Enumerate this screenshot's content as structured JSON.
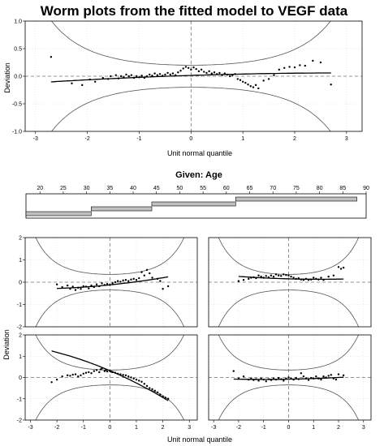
{
  "chart_data": {
    "type": "scatter",
    "title": "Worm plots from the fitted model to VEGF data",
    "xlabel": "Unit normal quantile",
    "ylabel": "Deviation",
    "given": {
      "label": "Given: Age",
      "range": [
        17,
        90
      ],
      "ticks": [
        20,
        25,
        30,
        35,
        40,
        45,
        50,
        55,
        60,
        65,
        70,
        75,
        80,
        85,
        90
      ],
      "intervals": [
        [
          17,
          31
        ],
        [
          31,
          44
        ],
        [
          44,
          62
        ],
        [
          62,
          88
        ]
      ]
    },
    "panels": [
      {
        "id": "overall",
        "xlim": [
          -3.2,
          3.3
        ],
        "ylim": [
          -1.0,
          1.0
        ],
        "xticks": [
          "-3",
          "-2",
          "-1",
          "0",
          "1",
          "2",
          "3"
        ],
        "yticks": [
          "-1.0",
          "-0.5",
          "0.0",
          "0.5",
          "1.0"
        ],
        "ci_factor": 0.2,
        "fit": {
          "a": 0.015,
          "b": 0.03,
          "c": -0.005,
          "d": 0.0
        },
        "points": [
          [
            -2.7,
            0.35
          ],
          [
            -2.3,
            -0.13
          ],
          [
            -2.1,
            -0.16
          ],
          [
            -1.95,
            -0.06
          ],
          [
            -1.85,
            -0.1
          ],
          [
            -1.7,
            -0.03
          ],
          [
            -1.6,
            -0.05
          ],
          [
            -1.55,
            0.0
          ],
          [
            -1.45,
            0.02
          ],
          [
            -1.4,
            -0.04
          ],
          [
            -1.35,
            0.0
          ],
          [
            -1.3,
            -0.02
          ],
          [
            -1.25,
            0.03
          ],
          [
            -1.2,
            0.0
          ],
          [
            -1.15,
            0.02
          ],
          [
            -1.1,
            -0.03
          ],
          [
            -1.05,
            0.0
          ],
          [
            -1.0,
            -0.02
          ],
          [
            -0.95,
            0.01
          ],
          [
            -0.9,
            -0.03
          ],
          [
            -0.85,
            0.0
          ],
          [
            -0.8,
            0.03
          ],
          [
            -0.75,
            0.01
          ],
          [
            -0.7,
            0.05
          ],
          [
            -0.65,
            0.02
          ],
          [
            -0.6,
            0.04
          ],
          [
            -0.55,
            0.01
          ],
          [
            -0.5,
            0.03
          ],
          [
            -0.45,
            0.06
          ],
          [
            -0.4,
            0.03
          ],
          [
            -0.35,
            0.05
          ],
          [
            -0.3,
            0.02
          ],
          [
            -0.25,
            0.07
          ],
          [
            -0.2,
            0.1
          ],
          [
            -0.15,
            0.14
          ],
          [
            -0.1,
            0.17
          ],
          [
            -0.05,
            0.15
          ],
          [
            0.0,
            0.12
          ],
          [
            0.05,
            0.16
          ],
          [
            0.1,
            0.13
          ],
          [
            0.15,
            0.09
          ],
          [
            0.2,
            0.12
          ],
          [
            0.25,
            0.08
          ],
          [
            0.3,
            0.06
          ],
          [
            0.35,
            0.09
          ],
          [
            0.4,
            0.05
          ],
          [
            0.45,
            0.07
          ],
          [
            0.5,
            0.04
          ],
          [
            0.55,
            0.06
          ],
          [
            0.6,
            0.02
          ],
          [
            0.65,
            0.05
          ],
          [
            0.7,
            0.03
          ],
          [
            0.75,
            0.0
          ],
          [
            0.8,
            0.02
          ],
          [
            0.85,
            0.04
          ],
          [
            0.9,
            -0.05
          ],
          [
            0.95,
            -0.07
          ],
          [
            1.0,
            -0.1
          ],
          [
            1.05,
            -0.12
          ],
          [
            1.1,
            -0.15
          ],
          [
            1.15,
            -0.18
          ],
          [
            1.2,
            -0.2
          ],
          [
            1.25,
            -0.16
          ],
          [
            1.3,
            -0.22
          ],
          [
            1.4,
            -0.08
          ],
          [
            1.5,
            -0.05
          ],
          [
            1.6,
            0.02
          ],
          [
            1.7,
            0.12
          ],
          [
            1.8,
            0.15
          ],
          [
            1.9,
            0.17
          ],
          [
            2.0,
            0.16
          ],
          [
            2.1,
            0.2
          ],
          [
            2.2,
            0.19
          ],
          [
            2.35,
            0.28
          ],
          [
            2.5,
            0.25
          ],
          [
            2.7,
            -0.15
          ]
        ]
      },
      {
        "id": "age-interval-1",
        "xlim": [
          -3.2,
          3.3
        ],
        "ylim": [
          -2.0,
          2.0
        ],
        "xticks": [
          "-3",
          "-2",
          "-1",
          "0",
          "1",
          "2",
          "3"
        ],
        "yticks": [
          "-2",
          "-1",
          "0",
          "1",
          "2"
        ],
        "ci_factor": 0.35,
        "fit": {
          "a": 0.32,
          "b": -0.53,
          "c": -0.05,
          "d": 0.0
        },
        "points": [
          [
            -2.2,
            -0.22
          ],
          [
            -2.0,
            -0.1
          ],
          [
            -1.8,
            0.05
          ],
          [
            -1.6,
            0.1
          ],
          [
            -1.5,
            0.08
          ],
          [
            -1.4,
            0.13
          ],
          [
            -1.3,
            0.15
          ],
          [
            -1.2,
            0.05
          ],
          [
            -1.1,
            0.1
          ],
          [
            -1.0,
            0.18
          ],
          [
            -0.9,
            0.22
          ],
          [
            -0.8,
            0.25
          ],
          [
            -0.7,
            0.2
          ],
          [
            -0.6,
            0.3
          ],
          [
            -0.5,
            0.35
          ],
          [
            -0.4,
            0.25
          ],
          [
            -0.35,
            0.38
          ],
          [
            -0.3,
            0.42
          ],
          [
            -0.2,
            0.3
          ],
          [
            -0.15,
            0.35
          ],
          [
            -0.1,
            0.28
          ],
          [
            0.0,
            0.3
          ],
          [
            0.05,
            0.27
          ],
          [
            0.1,
            0.25
          ],
          [
            0.2,
            0.22
          ],
          [
            0.3,
            0.18
          ],
          [
            0.4,
            0.15
          ],
          [
            0.5,
            0.12
          ],
          [
            0.6,
            0.1
          ],
          [
            0.7,
            0.05
          ],
          [
            0.8,
            0.0
          ],
          [
            0.9,
            -0.05
          ],
          [
            1.0,
            -0.1
          ],
          [
            1.1,
            -0.15
          ],
          [
            1.2,
            -0.2
          ],
          [
            1.3,
            -0.3
          ],
          [
            1.4,
            -0.4
          ],
          [
            1.5,
            -0.5
          ],
          [
            1.6,
            -0.55
          ],
          [
            1.7,
            -0.62
          ],
          [
            1.8,
            -0.7
          ],
          [
            1.9,
            -0.8
          ],
          [
            2.0,
            -0.9
          ],
          [
            2.1,
            -0.95
          ],
          [
            2.2,
            -1.0
          ]
        ]
      },
      {
        "id": "age-interval-2",
        "xlim": [
          -3.2,
          3.3
        ],
        "ylim": [
          -2.0,
          2.0
        ],
        "xticks": [
          "-3",
          "-2",
          "-1",
          "0",
          "1",
          "2",
          "3"
        ],
        "yticks": [
          "-2",
          "-1",
          "0",
          "1",
          "2"
        ],
        "ci_factor": 0.35,
        "fit": {
          "a": -0.08,
          "b": 0.02,
          "c": 0.01,
          "d": 0.0
        },
        "points": [
          [
            -2.2,
            0.3
          ],
          [
            -2.0,
            -0.05
          ],
          [
            -1.8,
            0.05
          ],
          [
            -1.6,
            -0.1
          ],
          [
            -1.5,
            -0.05
          ],
          [
            -1.4,
            -0.12
          ],
          [
            -1.3,
            -0.08
          ],
          [
            -1.2,
            -0.15
          ],
          [
            -1.1,
            -0.05
          ],
          [
            -1.0,
            -0.1
          ],
          [
            -0.9,
            -0.18
          ],
          [
            -0.8,
            -0.08
          ],
          [
            -0.7,
            -0.12
          ],
          [
            -0.6,
            -0.05
          ],
          [
            -0.5,
            -0.1
          ],
          [
            -0.4,
            -0.02
          ],
          [
            -0.3,
            -0.08
          ],
          [
            -0.2,
            -0.15
          ],
          [
            -0.1,
            -0.05
          ],
          [
            0.0,
            0.0
          ],
          [
            0.1,
            -0.05
          ],
          [
            0.2,
            -0.1
          ],
          [
            0.3,
            -0.02
          ],
          [
            0.4,
            -0.08
          ],
          [
            0.5,
            0.2
          ],
          [
            0.6,
            0.05
          ],
          [
            0.7,
            -0.05
          ],
          [
            0.8,
            -0.12
          ],
          [
            0.9,
            -0.02
          ],
          [
            1.0,
            -0.05
          ],
          [
            1.1,
            0.05
          ],
          [
            1.2,
            -0.05
          ],
          [
            1.3,
            -0.1
          ],
          [
            1.4,
            0.05
          ],
          [
            1.5,
            0.0
          ],
          [
            1.6,
            0.08
          ],
          [
            1.7,
            0.12
          ],
          [
            1.8,
            -0.05
          ],
          [
            1.9,
            -0.1
          ],
          [
            2.0,
            0.15
          ],
          [
            2.2,
            0.1
          ]
        ]
      },
      {
        "id": "age-interval-3",
        "xlim": [
          -3.2,
          3.3
        ],
        "ylim": [
          -2.0,
          2.0
        ],
        "xticks": [
          "-3",
          "-2",
          "-1",
          "0",
          "1",
          "2",
          "3"
        ],
        "yticks": [
          "-2",
          "-1",
          "0",
          "1",
          "2"
        ],
        "ci_factor": 0.35,
        "fit": {
          "a": -0.12,
          "b": 0.12,
          "c": 0.02,
          "d": 0.0
        },
        "points": [
          [
            -2.0,
            -0.1
          ],
          [
            -1.8,
            -0.22
          ],
          [
            -1.6,
            -0.15
          ],
          [
            -1.5,
            -0.3
          ],
          [
            -1.4,
            -0.2
          ],
          [
            -1.3,
            -0.35
          ],
          [
            -1.2,
            -0.25
          ],
          [
            -1.1,
            -0.3
          ],
          [
            -1.0,
            -0.18
          ],
          [
            -0.9,
            -0.2
          ],
          [
            -0.8,
            -0.28
          ],
          [
            -0.7,
            -0.15
          ],
          [
            -0.6,
            -0.22
          ],
          [
            -0.5,
            -0.1
          ],
          [
            -0.4,
            -0.18
          ],
          [
            -0.3,
            -0.05
          ],
          [
            -0.2,
            -0.12
          ],
          [
            -0.1,
            -0.08
          ],
          [
            0.0,
            -0.12
          ],
          [
            0.1,
            -0.05
          ],
          [
            0.2,
            0.0
          ],
          [
            0.3,
            0.05
          ],
          [
            0.4,
            0.02
          ],
          [
            0.5,
            0.08
          ],
          [
            0.6,
            0.1
          ],
          [
            0.7,
            0.05
          ],
          [
            0.8,
            0.12
          ],
          [
            0.9,
            0.15
          ],
          [
            1.0,
            0.1
          ],
          [
            1.1,
            0.18
          ],
          [
            1.2,
            0.45
          ],
          [
            1.3,
            0.3
          ],
          [
            1.4,
            0.55
          ],
          [
            1.5,
            0.4
          ],
          [
            1.6,
            0.2
          ],
          [
            1.8,
            0.15
          ],
          [
            1.9,
            0.05
          ],
          [
            2.0,
            -0.3
          ],
          [
            2.2,
            -0.18
          ]
        ]
      },
      {
        "id": "age-interval-4",
        "xlim": [
          -3.2,
          3.3
        ],
        "ylim": [
          -2.0,
          2.0
        ],
        "xticks": [
          "-3",
          "-2",
          "-1",
          "0",
          "1",
          "2",
          "3"
        ],
        "yticks": [
          "-2",
          "-1",
          "0",
          "1",
          "2"
        ],
        "ci_factor": 0.35,
        "fit": {
          "a": 0.15,
          "b": -0.03,
          "c": 0.012,
          "d": 0.0
        },
        "points": [
          [
            -2.0,
            0.05
          ],
          [
            -1.8,
            0.1
          ],
          [
            -1.6,
            0.15
          ],
          [
            -1.5,
            0.2
          ],
          [
            -1.4,
            0.22
          ],
          [
            -1.3,
            0.18
          ],
          [
            -1.2,
            0.3
          ],
          [
            -1.1,
            0.25
          ],
          [
            -1.0,
            0.2
          ],
          [
            -0.9,
            0.28
          ],
          [
            -0.8,
            0.22
          ],
          [
            -0.7,
            0.3
          ],
          [
            -0.6,
            0.25
          ],
          [
            -0.5,
            0.35
          ],
          [
            -0.4,
            0.3
          ],
          [
            -0.3,
            0.28
          ],
          [
            -0.2,
            0.35
          ],
          [
            -0.1,
            0.32
          ],
          [
            0.0,
            0.3
          ],
          [
            0.1,
            0.25
          ],
          [
            0.2,
            0.2
          ],
          [
            0.3,
            0.15
          ],
          [
            0.4,
            0.18
          ],
          [
            0.5,
            0.12
          ],
          [
            0.6,
            0.1
          ],
          [
            0.7,
            0.15
          ],
          [
            0.8,
            0.1
          ],
          [
            0.9,
            0.12
          ],
          [
            1.0,
            0.2
          ],
          [
            1.1,
            0.15
          ],
          [
            1.2,
            0.12
          ],
          [
            1.3,
            0.2
          ],
          [
            1.4,
            0.1
          ],
          [
            1.6,
            0.25
          ],
          [
            1.8,
            0.3
          ],
          [
            2.0,
            0.68
          ],
          [
            2.1,
            0.6
          ],
          [
            2.2,
            0.65
          ]
        ]
      }
    ]
  }
}
